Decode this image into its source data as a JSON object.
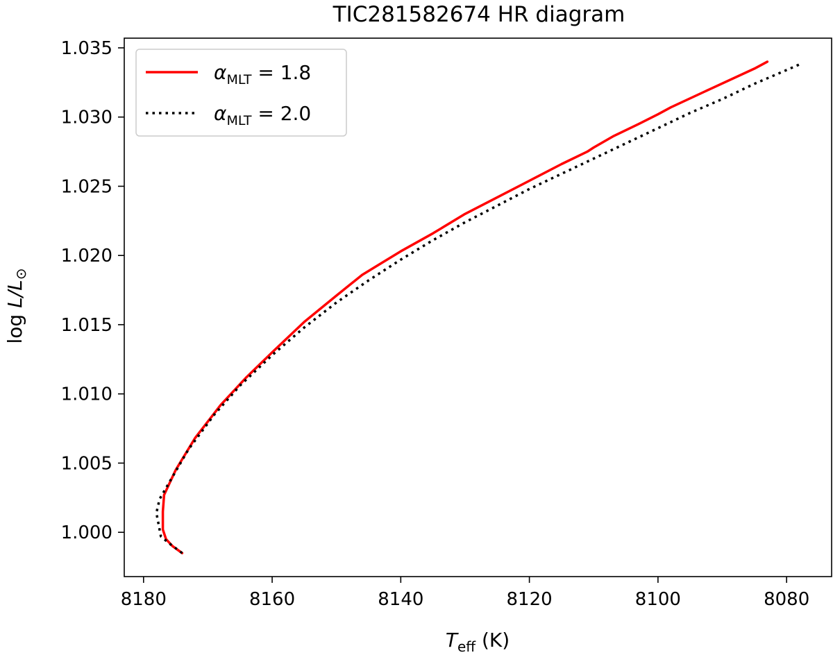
{
  "chart_data": {
    "type": "line",
    "title": "TIC281582674 HR diagram",
    "xlabel": {
      "main": "T",
      "sub": "eff",
      "unit": " (K)"
    },
    "ylabel": {
      "prefix": "log ",
      "main": "L/L",
      "sub": "⊙"
    },
    "xlim": [
      8183,
      8073
    ],
    "ylim": [
      0.9968,
      1.0357
    ],
    "x_inverted": true,
    "grid": false,
    "legend_position": "top-left",
    "xticks": [
      8180,
      8160,
      8140,
      8120,
      8100,
      8080
    ],
    "xtick_labels": [
      "8180",
      "8160",
      "8140",
      "8120",
      "8100",
      "8080"
    ],
    "yticks": [
      1.0,
      1.005,
      1.01,
      1.015,
      1.02,
      1.025,
      1.03,
      1.035
    ],
    "ytick_labels": [
      "1.000",
      "1.005",
      "1.010",
      "1.015",
      "1.020",
      "1.025",
      "1.030",
      "1.035"
    ],
    "series": [
      {
        "name": "α_MLT = 1.8",
        "label_greek": "α",
        "label_sub": "MLT",
        "label_value": " = 1.8",
        "color": "#ff0000",
        "style": "solid",
        "x": [
          8174.0,
          8175.5,
          8176.5,
          8177.0,
          8177.0,
          8176.8,
          8175.0,
          8172.0,
          8168.0,
          8164.0,
          8160.0,
          8155.0,
          8150.0,
          8146.0,
          8140.0,
          8135.0,
          8130.0,
          8125.0,
          8120.0,
          8115.0,
          8111.0,
          8110.0,
          8107.0,
          8103.0,
          8100.0,
          8098.0,
          8092.0,
          8085.0,
          8083.0
        ],
        "y": [
          0.9985,
          0.999,
          0.9995,
          1.0002,
          1.0015,
          1.0027,
          1.0045,
          1.0068,
          1.0092,
          1.0112,
          1.013,
          1.0152,
          1.0171,
          1.0186,
          1.0203,
          1.0216,
          1.023,
          1.0242,
          1.0254,
          1.0266,
          1.0275,
          1.0278,
          1.0286,
          1.0295,
          1.0302,
          1.0307,
          1.032,
          1.0335,
          1.034
        ]
      },
      {
        "name": "α_MLT = 2.0",
        "label_greek": "α",
        "label_sub": "MLT",
        "label_value": " = 2.0",
        "color": "#000000",
        "style": "dotted",
        "x": [
          8174.0,
          8176.0,
          8177.3,
          8178.0,
          8177.5,
          8176.0,
          8173.0,
          8169.0,
          8165.0,
          8160.0,
          8155.0,
          8150.0,
          8145.0,
          8140.0,
          8135.0,
          8130.0,
          8125.0,
          8120.0,
          8115.0,
          8110.0,
          8105.0,
          8100.0,
          8095.0,
          8090.0,
          8085.0,
          8080.0,
          8078.0
        ],
        "y": [
          0.9985,
          0.9992,
          0.9997,
          1.0014,
          1.0024,
          1.0036,
          1.006,
          1.0085,
          1.0106,
          1.0128,
          1.0148,
          1.0166,
          1.0182,
          1.0197,
          1.0211,
          1.0224,
          1.0236,
          1.0248,
          1.0259,
          1.027,
          1.0281,
          1.0292,
          1.0303,
          1.0313,
          1.0324,
          1.0334,
          1.0338
        ]
      }
    ]
  }
}
